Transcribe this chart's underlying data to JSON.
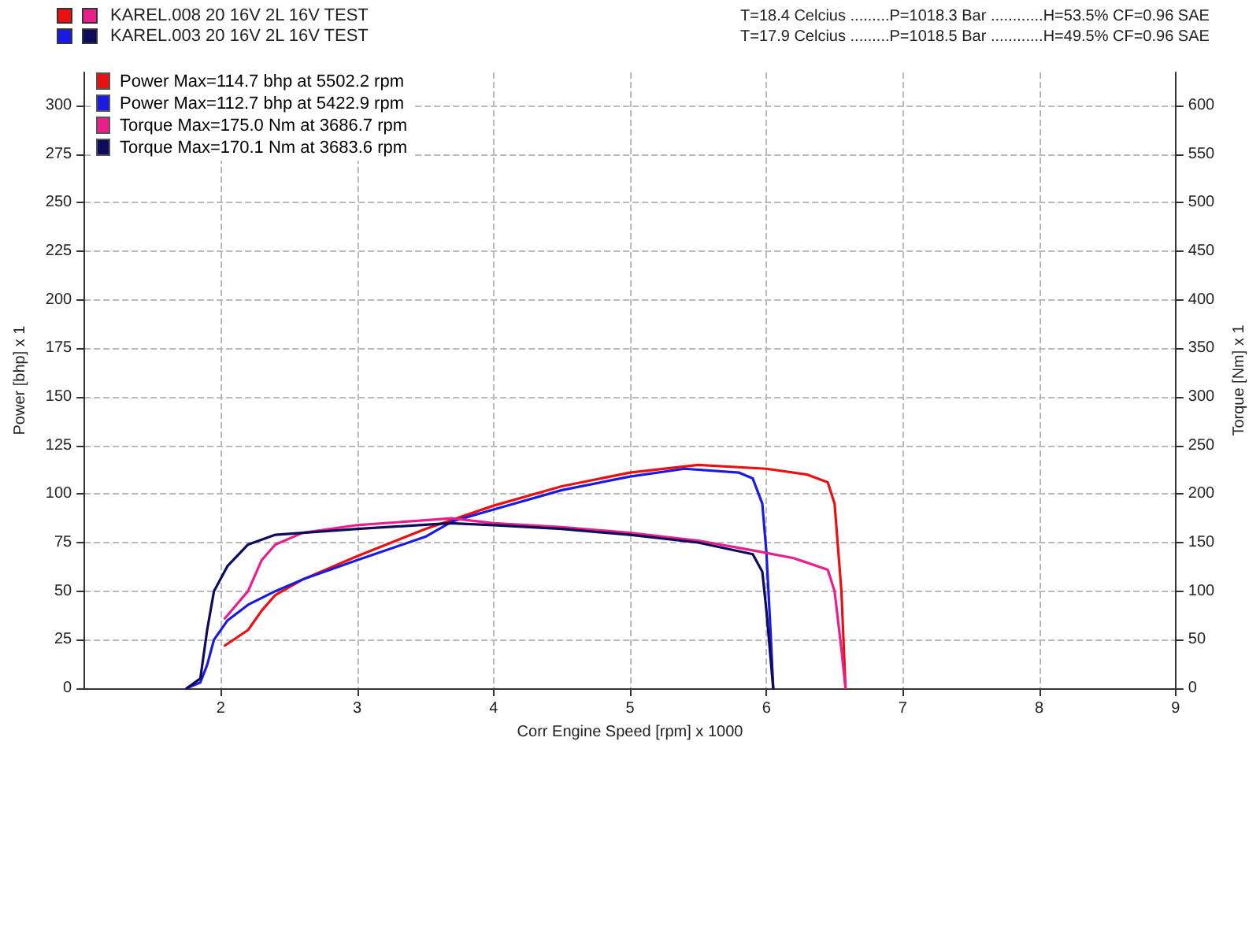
{
  "chart_data": {
    "type": "line",
    "xlabel": "Corr Engine Speed [rpm] x 1000",
    "ylabel": "Power [bhp] x 1",
    "y2label": "Torque [Nm] x 1",
    "annotations": [
      "KAREL.008 20 16V  2L 16V TEST",
      "KAREL.003 20 16V  2L 16V TEST",
      "T=18.4 Celcius .........P=1018.3 Bar ............H=53.5% CF=0.96 SAE",
      "T=17.9 Celcius .........P=1018.5 Bar ............H=49.5% CF=0.96 SAE"
    ],
    "xlim": [
      1,
      9
    ],
    "xticks": [
      2,
      3,
      4,
      5,
      6,
      7,
      8,
      9
    ],
    "ylim": [
      0,
      317
    ],
    "yticks": [
      0,
      25,
      50,
      75,
      100,
      125,
      150,
      175,
      200,
      225,
      250,
      275,
      300
    ],
    "y2lim": [
      0,
      634
    ],
    "y2ticks": [
      0,
      50,
      100,
      150,
      200,
      250,
      300,
      350,
      400,
      450,
      500,
      550,
      600
    ],
    "grid": true,
    "legend": "top left",
    "marker": "none",
    "line_style": "solid",
    "series": [
      {
        "name": "Power  Max=114.7 bhp at 5502.2 rpm",
        "color": "#e81010",
        "x": [
          2.03,
          2.2,
          2.3,
          2.4,
          2.6,
          3.0,
          3.5,
          4.0,
          4.5,
          5.0,
          5.5,
          6.0,
          6.3,
          6.45,
          6.5,
          6.55,
          6.58
        ],
        "values": [
          22,
          30,
          40,
          48,
          56,
          68,
          82,
          94,
          104,
          111,
          115,
          113,
          110,
          106,
          95,
          50,
          0
        ]
      },
      {
        "name": "Power  Max=112.7 bhp at 5422.9 rpm",
        "color": "#1a1ae0",
        "x": [
          1.75,
          1.85,
          1.9,
          1.95,
          2.05,
          2.2,
          2.4,
          2.6,
          3.0,
          3.5,
          3.7,
          4.0,
          4.5,
          5.0,
          5.4,
          5.8,
          5.9,
          5.97,
          6.0,
          6.03,
          6.05
        ],
        "values": [
          0,
          3,
          12,
          25,
          35,
          43,
          50,
          56,
          66,
          78,
          86,
          92,
          102,
          109,
          113,
          111,
          108,
          95,
          70,
          30,
          0
        ]
      },
      {
        "name": "Torque  Max=175.0 Nm at 3686.7 rpm",
        "color": "#e8208c",
        "axis": "y2",
        "x": [
          2.03,
          2.2,
          2.3,
          2.4,
          2.6,
          3.0,
          3.5,
          3.69,
          4.0,
          4.5,
          5.0,
          5.5,
          5.9,
          6.2,
          6.45,
          6.5,
          6.55,
          6.58
        ],
        "values": [
          72,
          100,
          132,
          148,
          160,
          168,
          173,
          175,
          170,
          166,
          160,
          152,
          142,
          134,
          122,
          100,
          40,
          0
        ]
      },
      {
        "name": "Torque  Max=170.1 Nm at 3683.6 rpm",
        "color": "#0c0c5a",
        "axis": "y2",
        "x": [
          1.75,
          1.85,
          1.9,
          1.95,
          2.05,
          2.2,
          2.4,
          2.6,
          3.0,
          3.68,
          4.0,
          4.5,
          5.0,
          5.5,
          5.9,
          5.97,
          6.0,
          6.05
        ],
        "values": [
          0,
          10,
          60,
          100,
          126,
          148,
          158,
          160,
          164,
          170,
          168,
          164,
          158,
          150,
          138,
          120,
          80,
          0
        ]
      }
    ]
  }
}
